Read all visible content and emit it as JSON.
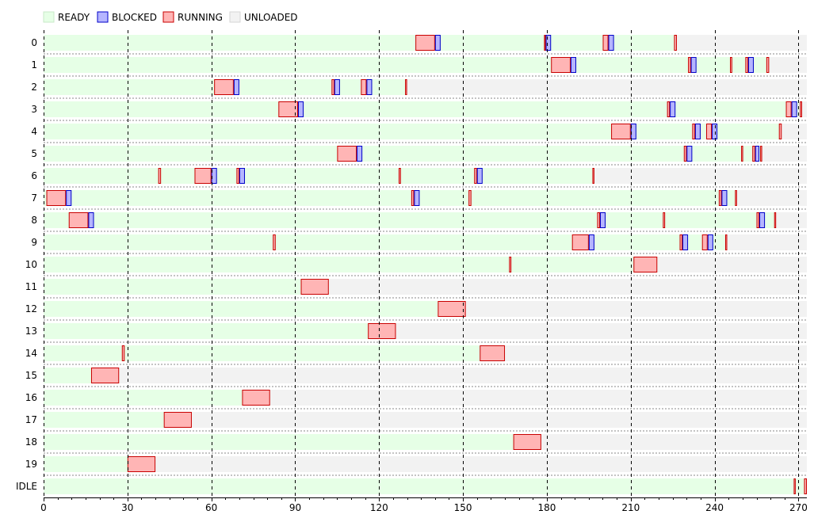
{
  "chart_data": {
    "type": "gantt",
    "legend": [
      {
        "label": "READY",
        "fill": "#e6ffe6",
        "stroke": "#c8e8c8"
      },
      {
        "label": "BLOCKED",
        "fill": "#b5b5ff",
        "stroke": "#0000c8"
      },
      {
        "label": "RUNNING",
        "fill": "#ffb5b5",
        "stroke": "#c80000"
      },
      {
        "label": "UNLOADED",
        "fill": "#f2f2f2",
        "stroke": "#d6d6d6"
      }
    ],
    "colors": {
      "ready": "#e6ffe6",
      "blocked": "#b5b5ff",
      "blocked_stroke": "#0000c8",
      "running": "#ffb5b5",
      "running_stroke": "#c80000",
      "unloaded": "#f2f2f2",
      "grid": "#000000"
    },
    "xlim": [
      0,
      273
    ],
    "x_ticks": [
      0,
      30,
      60,
      90,
      120,
      150,
      180,
      210,
      240,
      270
    ],
    "rows": [
      {
        "label": "0",
        "unloaded_from": 226.5,
        "segments": [
          {
            "s": "running",
            "x0": 133,
            "x1": 140
          },
          {
            "s": "blocked",
            "x0": 140,
            "x1": 142
          },
          {
            "s": "running",
            "x0": 179,
            "x1": 179.6
          },
          {
            "s": "blocked",
            "x0": 179.6,
            "x1": 181.5
          },
          {
            "s": "running",
            "x0": 200,
            "x1": 202
          },
          {
            "s": "blocked",
            "x0": 202,
            "x1": 204
          },
          {
            "s": "running",
            "x0": 225.5,
            "x1": 226.5
          }
        ]
      },
      {
        "label": "1",
        "unloaded_from": 259.5,
        "segments": [
          {
            "s": "running",
            "x0": 181.5,
            "x1": 188.5
          },
          {
            "s": "blocked",
            "x0": 188.5,
            "x1": 190.5
          },
          {
            "s": "running",
            "x0": 230.5,
            "x1": 231.5
          },
          {
            "s": "blocked",
            "x0": 231.5,
            "x1": 233.5
          },
          {
            "s": "running",
            "x0": 245.5,
            "x1": 246.3
          },
          {
            "s": "running",
            "x0": 251,
            "x1": 252
          },
          {
            "s": "blocked",
            "x0": 252,
            "x1": 254
          },
          {
            "s": "running",
            "x0": 258.5,
            "x1": 259.5
          }
        ]
      },
      {
        "label": "2",
        "unloaded_from": 130,
        "segments": [
          {
            "s": "running",
            "x0": 61,
            "x1": 68
          },
          {
            "s": "blocked",
            "x0": 68,
            "x1": 70
          },
          {
            "s": "running",
            "x0": 103,
            "x1": 104
          },
          {
            "s": "blocked",
            "x0": 104,
            "x1": 106
          },
          {
            "s": "running",
            "x0": 113.5,
            "x1": 115.5
          },
          {
            "s": "blocked",
            "x0": 115.5,
            "x1": 117.5
          },
          {
            "s": "running",
            "x0": 129.3,
            "x1": 130
          }
        ]
      },
      {
        "label": "3",
        "unloaded_from": 271.3,
        "segments": [
          {
            "s": "running",
            "x0": 84,
            "x1": 91
          },
          {
            "s": "blocked",
            "x0": 91,
            "x1": 93
          },
          {
            "s": "running",
            "x0": 223,
            "x1": 224
          },
          {
            "s": "blocked",
            "x0": 224,
            "x1": 226
          },
          {
            "s": "running",
            "x0": 265.5,
            "x1": 267.5
          },
          {
            "s": "blocked",
            "x0": 267.5,
            "x1": 269.5
          },
          {
            "s": "running",
            "x0": 270.5,
            "x1": 271.3
          }
        ]
      },
      {
        "label": "4",
        "unloaded_from": 264,
        "segments": [
          {
            "s": "running",
            "x0": 203,
            "x1": 210
          },
          {
            "s": "blocked",
            "x0": 210,
            "x1": 212
          },
          {
            "s": "running",
            "x0": 232,
            "x1": 233
          },
          {
            "s": "blocked",
            "x0": 233,
            "x1": 235
          },
          {
            "s": "running",
            "x0": 237,
            "x1": 239
          },
          {
            "s": "blocked",
            "x0": 239,
            "x1": 241
          },
          {
            "s": "running",
            "x0": 263,
            "x1": 264
          }
        ]
      },
      {
        "label": "5",
        "unloaded_from": 257,
        "segments": [
          {
            "s": "running",
            "x0": 105,
            "x1": 112
          },
          {
            "s": "blocked",
            "x0": 112,
            "x1": 114
          },
          {
            "s": "running",
            "x0": 229,
            "x1": 230
          },
          {
            "s": "blocked",
            "x0": 230,
            "x1": 232
          },
          {
            "s": "running",
            "x0": 249.5,
            "x1": 250.2
          },
          {
            "s": "running",
            "x0": 253.5,
            "x1": 254.5
          },
          {
            "s": "blocked",
            "x0": 254.5,
            "x1": 256
          },
          {
            "s": "running",
            "x0": 256.3,
            "x1": 257
          }
        ]
      },
      {
        "label": "6",
        "unloaded_from": 197,
        "segments": [
          {
            "s": "running",
            "x0": 41,
            "x1": 42
          },
          {
            "s": "running",
            "x0": 54,
            "x1": 60
          },
          {
            "s": "blocked",
            "x0": 60,
            "x1": 62
          },
          {
            "s": "running",
            "x0": 69,
            "x1": 70
          },
          {
            "s": "blocked",
            "x0": 70,
            "x1": 72
          },
          {
            "s": "running",
            "x0": 127,
            "x1": 127.8
          },
          {
            "s": "running",
            "x0": 154,
            "x1": 155
          },
          {
            "s": "blocked",
            "x0": 155,
            "x1": 157
          },
          {
            "s": "running",
            "x0": 196.3,
            "x1": 197
          }
        ]
      },
      {
        "label": "7",
        "unloaded_from": 248,
        "segments": [
          {
            "s": "running",
            "x0": 1,
            "x1": 8
          },
          {
            "s": "blocked",
            "x0": 8,
            "x1": 10
          },
          {
            "s": "running",
            "x0": 131.5,
            "x1": 132.5
          },
          {
            "s": "blocked",
            "x0": 132.5,
            "x1": 134.5
          },
          {
            "s": "running",
            "x0": 152,
            "x1": 153
          },
          {
            "s": "running",
            "x0": 241.5,
            "x1": 242.5
          },
          {
            "s": "blocked",
            "x0": 242.5,
            "x1": 244.5
          },
          {
            "s": "running",
            "x0": 247.3,
            "x1": 248
          }
        ]
      },
      {
        "label": "8",
        "unloaded_from": 262,
        "segments": [
          {
            "s": "running",
            "x0": 9,
            "x1": 16
          },
          {
            "s": "blocked",
            "x0": 16,
            "x1": 18
          },
          {
            "s": "running",
            "x0": 198,
            "x1": 199
          },
          {
            "s": "blocked",
            "x0": 199,
            "x1": 201
          },
          {
            "s": "running",
            "x0": 221.5,
            "x1": 222.3
          },
          {
            "s": "running",
            "x0": 255,
            "x1": 256
          },
          {
            "s": "blocked",
            "x0": 256,
            "x1": 258
          },
          {
            "s": "running",
            "x0": 261.3,
            "x1": 262
          }
        ]
      },
      {
        "label": "9",
        "unloaded_from": 244.5,
        "segments": [
          {
            "s": "running",
            "x0": 82,
            "x1": 83
          },
          {
            "s": "running",
            "x0": 189,
            "x1": 195
          },
          {
            "s": "blocked",
            "x0": 195,
            "x1": 197
          },
          {
            "s": "running",
            "x0": 227.5,
            "x1": 228.5
          },
          {
            "s": "blocked",
            "x0": 228.5,
            "x1": 230.5
          },
          {
            "s": "running",
            "x0": 235.5,
            "x1": 237.5
          },
          {
            "s": "blocked",
            "x0": 237.5,
            "x1": 239.5
          },
          {
            "s": "running",
            "x0": 243.8,
            "x1": 244.5
          }
        ]
      },
      {
        "label": "10",
        "unloaded_from": 219.5,
        "segments": [
          {
            "s": "running",
            "x0": 166.5,
            "x1": 167.3
          },
          {
            "s": "running",
            "x0": 211,
            "x1": 219.5
          }
        ]
      },
      {
        "label": "11",
        "unloaded_from": 102,
        "segments": [
          {
            "s": "running",
            "x0": 92,
            "x1": 102
          }
        ]
      },
      {
        "label": "12",
        "unloaded_from": 151,
        "segments": [
          {
            "s": "running",
            "x0": 141,
            "x1": 151
          }
        ]
      },
      {
        "label": "13",
        "unloaded_from": 126,
        "segments": [
          {
            "s": "running",
            "x0": 116,
            "x1": 126
          }
        ]
      },
      {
        "label": "14",
        "unloaded_from": 165,
        "segments": [
          {
            "s": "running",
            "x0": 28,
            "x1": 29
          },
          {
            "s": "running",
            "x0": 156,
            "x1": 165
          }
        ]
      },
      {
        "label": "15",
        "unloaded_from": 27,
        "segments": [
          {
            "s": "running",
            "x0": 17,
            "x1": 27
          }
        ]
      },
      {
        "label": "16",
        "unloaded_from": 81,
        "segments": [
          {
            "s": "running",
            "x0": 71,
            "x1": 81
          }
        ]
      },
      {
        "label": "17",
        "unloaded_from": 53,
        "segments": [
          {
            "s": "running",
            "x0": 43,
            "x1": 53
          }
        ]
      },
      {
        "label": "18",
        "unloaded_from": 178,
        "segments": [
          {
            "s": "running",
            "x0": 168,
            "x1": 178
          }
        ]
      },
      {
        "label": "19",
        "unloaded_from": 40,
        "segments": [
          {
            "s": "running",
            "x0": 30,
            "x1": 40
          }
        ]
      },
      {
        "label": "IDLE",
        "unloaded_from": null,
        "segments": [
          {
            "s": "running",
            "x0": 268.3,
            "x1": 269
          },
          {
            "s": "running",
            "x0": 272,
            "x1": 273
          }
        ]
      }
    ]
  }
}
